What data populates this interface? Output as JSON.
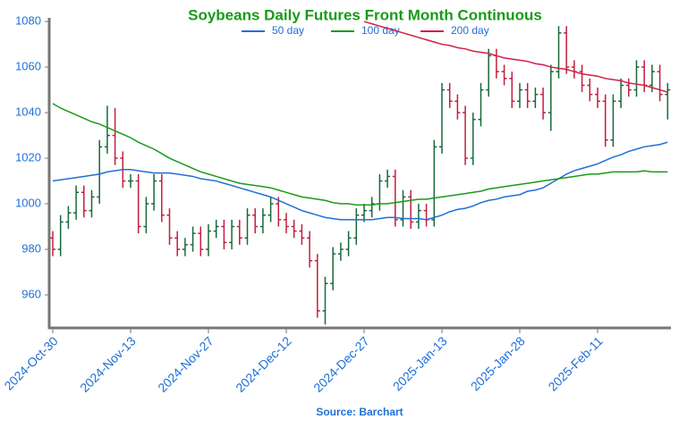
{
  "chart_data": {
    "type": "ohlc",
    "title": "Soybeans Daily Futures Front Month Continuous",
    "source": "Source: Barchart",
    "categories": [
      "2024-Oct-30",
      null,
      null,
      null,
      null,
      null,
      null,
      null,
      null,
      null,
      "2024-Nov-13",
      null,
      null,
      null,
      null,
      null,
      null,
      null,
      null,
      null,
      "2024-Nov-27",
      null,
      null,
      null,
      null,
      null,
      null,
      null,
      null,
      null,
      "2024-Dec-12",
      null,
      null,
      null,
      null,
      null,
      null,
      null,
      null,
      null,
      "2024-Dec-27",
      null,
      null,
      null,
      null,
      null,
      null,
      null,
      null,
      null,
      "2025-Jan-13",
      null,
      null,
      null,
      null,
      null,
      null,
      null,
      null,
      null,
      "2025-Jan-28",
      null,
      null,
      null,
      null,
      null,
      null,
      null,
      null,
      null,
      "2025-Feb-11",
      null,
      null,
      null,
      null,
      null,
      null,
      null,
      null,
      null
    ],
    "open": [
      985,
      980,
      992,
      996,
      1005,
      997,
      1003,
      1025,
      1030,
      1020,
      1010,
      1010,
      990,
      1000,
      1010,
      995,
      985,
      980,
      982,
      987,
      980,
      988,
      990,
      983,
      990,
      985,
      995,
      990,
      995,
      1000,
      993,
      990,
      988,
      985,
      975,
      953,
      965,
      978,
      980,
      985,
      995,
      997,
      1000,
      1010,
      1012,
      993,
      1003,
      992,
      997,
      993,
      1025,
      1050,
      1045,
      1040,
      1020,
      1037,
      1050,
      1065,
      1058,
      1055,
      1045,
      1050,
      1045,
      1048,
      1040,
      1058,
      1075,
      1060,
      1058,
      1052,
      1048,
      1045,
      1028,
      1045,
      1052,
      1050,
      1060,
      1052,
      1058,
      1048
    ],
    "high": [
      988,
      995,
      999,
      1008,
      1008,
      1006,
      1028,
      1043,
      1042,
      1023,
      1013,
      1013,
      1003,
      1013,
      1013,
      998,
      988,
      985,
      990,
      990,
      991,
      993,
      993,
      993,
      993,
      998,
      998,
      998,
      1003,
      1003,
      996,
      993,
      991,
      988,
      978,
      968,
      981,
      983,
      988,
      998,
      1000,
      1003,
      1013,
      1015,
      1015,
      1006,
      1006,
      1000,
      1000,
      1028,
      1053,
      1053,
      1048,
      1043,
      1040,
      1053,
      1068,
      1068,
      1061,
      1058,
      1053,
      1053,
      1051,
      1051,
      1061,
      1078,
      1078,
      1063,
      1061,
      1055,
      1051,
      1048,
      1048,
      1055,
      1055,
      1063,
      1063,
      1061,
      1061,
      1053
    ],
    "low": [
      977,
      977,
      989,
      993,
      994,
      994,
      1000,
      1022,
      1017,
      1007,
      1007,
      987,
      987,
      997,
      992,
      982,
      977,
      977,
      979,
      977,
      977,
      985,
      980,
      980,
      982,
      982,
      987,
      987,
      992,
      990,
      987,
      985,
      982,
      972,
      950,
      947,
      962,
      975,
      977,
      982,
      992,
      994,
      997,
      1007,
      990,
      990,
      989,
      989,
      990,
      990,
      1022,
      1042,
      1037,
      1017,
      1017,
      1034,
      1047,
      1055,
      1052,
      1042,
      1042,
      1042,
      1042,
      1037,
      1032,
      1055,
      1057,
      1055,
      1049,
      1045,
      1042,
      1025,
      1025,
      1042,
      1047,
      1047,
      1049,
      1049,
      1045,
      1037
    ],
    "close": [
      980,
      992,
      996,
      1005,
      997,
      1003,
      1025,
      1030,
      1020,
      1010,
      1010,
      990,
      1000,
      1010,
      995,
      985,
      980,
      982,
      987,
      980,
      988,
      990,
      983,
      990,
      985,
      995,
      990,
      995,
      1000,
      993,
      990,
      988,
      985,
      975,
      953,
      965,
      978,
      980,
      985,
      995,
      997,
      1000,
      1010,
      1012,
      993,
      1003,
      992,
      997,
      993,
      1025,
      1050,
      1045,
      1040,
      1020,
      1037,
      1050,
      1065,
      1058,
      1055,
      1045,
      1050,
      1045,
      1048,
      1040,
      1058,
      1075,
      1060,
      1058,
      1052,
      1048,
      1045,
      1028,
      1045,
      1052,
      1050,
      1060,
      1052,
      1058,
      1048,
      1050
    ],
    "up_color": "#17693a",
    "down_color": "#c0203c",
    "series": [
      {
        "name": "50 day",
        "color": "#1f6fd6",
        "values": [
          1010,
          1010.5,
          1011,
          1011.5,
          1012,
          1012.5,
          1013,
          1014,
          1014.5,
          1015,
          1015,
          1014.5,
          1014,
          1013.5,
          1013.5,
          1013.5,
          1013,
          1012.5,
          1012,
          1011,
          1010.5,
          1010,
          1009,
          1008,
          1007,
          1006,
          1005,
          1004,
          1003,
          1001.5,
          1000,
          998.5,
          997,
          996,
          995,
          994,
          993.5,
          993,
          993,
          993,
          993,
          993,
          993.5,
          994,
          994,
          993.5,
          993.5,
          993.5,
          993,
          994,
          995,
          996.5,
          997.5,
          998,
          999,
          1000.5,
          1001.5,
          1002,
          1003,
          1003.5,
          1004,
          1005.5,
          1006,
          1007,
          1009,
          1011,
          1013,
          1014.5,
          1015.5,
          1016.5,
          1017.5,
          1019,
          1020.5,
          1021.5,
          1023,
          1024,
          1025,
          1025.5,
          1026,
          1027
        ]
      },
      {
        "name": "100 day",
        "color": "#1a9a1a",
        "values": [
          1044,
          1042,
          1040.5,
          1039,
          1037.5,
          1036,
          1035,
          1033.5,
          1032,
          1030.5,
          1029,
          1027,
          1025.5,
          1024,
          1022,
          1020,
          1018.5,
          1017,
          1015.5,
          1014,
          1013,
          1012,
          1011,
          1010,
          1009,
          1008.5,
          1008,
          1007.5,
          1007,
          1006,
          1005,
          1004,
          1003,
          1002.5,
          1002,
          1001.5,
          1000.5,
          1000,
          1000,
          999.5,
          999.5,
          999.5,
          1000,
          1000,
          1000.5,
          1001,
          1001.5,
          1002,
          1002,
          1002.5,
          1003,
          1003.5,
          1004,
          1004.5,
          1005,
          1005.5,
          1006.5,
          1007,
          1007.5,
          1008,
          1008.5,
          1009,
          1009.5,
          1010,
          1010.5,
          1011,
          1011.5,
          1012,
          1012.5,
          1013,
          1013,
          1013.5,
          1014,
          1014,
          1014,
          1014,
          1014.5,
          1014,
          1014,
          1014
        ]
      },
      {
        "name": "200 day",
        "color": "#d11f47",
        "values": [
          null,
          null,
          null,
          null,
          null,
          null,
          null,
          null,
          null,
          null,
          null,
          null,
          null,
          null,
          null,
          null,
          null,
          null,
          null,
          null,
          null,
          null,
          null,
          null,
          null,
          null,
          null,
          null,
          null,
          null,
          null,
          null,
          null,
          null,
          null,
          null,
          null,
          null,
          null,
          null,
          1080,
          1079,
          1078,
          1077,
          1076,
          1075,
          1074,
          1073,
          1072,
          1071,
          1070,
          1069.5,
          1068.5,
          1068,
          1067,
          1066.5,
          1066,
          1065,
          1064,
          1063.5,
          1063,
          1062.5,
          1061.5,
          1061,
          1060,
          1059.5,
          1059,
          1058,
          1057,
          1056.5,
          1056,
          1055,
          1054.5,
          1054,
          1053,
          1052.5,
          1052,
          1051,
          1050,
          1049
        ]
      }
    ],
    "ylim": [
      945.5,
      1081.6
    ],
    "yticks": [
      960,
      980,
      1000,
      1020,
      1040,
      1060,
      1080
    ]
  }
}
